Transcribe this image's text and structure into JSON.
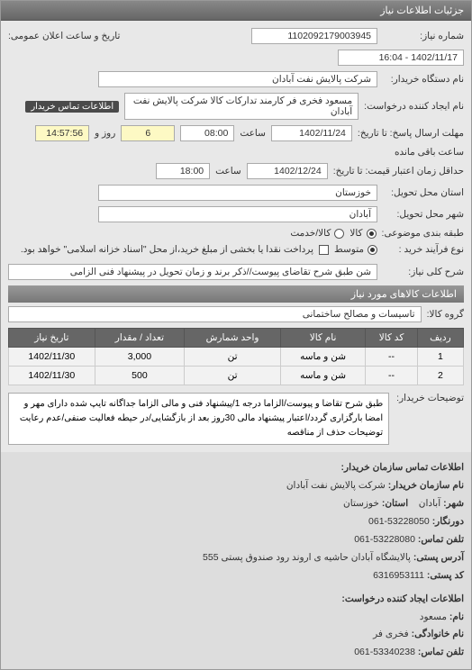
{
  "panel": {
    "title": "جزئیات اطلاعات نیاز"
  },
  "header": {
    "req_no_label": "شماره نیاز:",
    "req_no": "1102092179003945",
    "pub_label": "تاریخ و ساعت اعلان عمومی:",
    "pub_value": "1402/11/17 - 16:04",
    "buyer_label": "نام دستگاه خریدار:",
    "buyer_value": "شرکت پالایش نفت آبادان",
    "requester_label": "نام ایجاد کننده درخواست:",
    "requester_value": "مسعود فخری فر کارمند تدارکات کالا شرکت پالایش نفت آبادان",
    "buyer_contact_link": "اطلاعات تماس خریدار",
    "deadline_label": "مهلت ارسال پاسخ: تا تاریخ:",
    "deadline_date": "1402/11/24",
    "time_label": "ساعت",
    "deadline_time": "08:00",
    "remain_days": "6",
    "remain_day_label": "روز و",
    "remain_time": "14:57:56",
    "remain_suffix": "ساعت باقی مانده",
    "validity_label": "حداقل زمان اعتبار قیمت: تا تاریخ:",
    "validity_date": "1402/12/24",
    "validity_time": "18:00",
    "province_label": "استان محل تحویل:",
    "province_value": "خوزستان",
    "city_label": "شهر محل تحویل:",
    "city_value": "آبادان",
    "budget_label": "طبقه بندی موضوعی:",
    "budget_opts": {
      "kala": "کالا",
      "khadamat": "کالا/خدمت"
    },
    "buy_type_label": "نوع فرآیند خرید :",
    "buy_type_opts": {
      "mid": "متوسط",
      "note": "پرداخت نقدا یا بخشی از مبلغ خرید،از محل \"اسناد خزانه اسلامی\" خواهد بود."
    },
    "summary_label": "شرح کلی نیاز:",
    "summary_value": "شن طبق شرح تقاضای پیوست//ذکر برند و زمان تحویل در پیشنهاد فنی الزامی"
  },
  "items_section": {
    "title": "اطلاعات کالاهای مورد نیاز",
    "group_label": "گروه کالا:",
    "group_value": "تاسیسات و مصالح ساختمانی",
    "columns": [
      "ردیف",
      "کد کالا",
      "نام کالا",
      "واحد شمارش",
      "تعداد / مقدار",
      "تاریخ نیاز"
    ],
    "rows": [
      [
        "1",
        "--",
        "شن و ماسه",
        "تن",
        "3,000",
        "1402/11/30"
      ],
      [
        "2",
        "--",
        "شن و ماسه",
        "تن",
        "500",
        "1402/11/30"
      ]
    ],
    "desc_label": "توضیحات خریدار:",
    "desc_text": "طبق شرح تقاضا و پیوست/الزاما درجه 1/پیشنهاد فنی و مالی الزاما جداگانه تایپ شده دارای مهر و امضا بارگزاری گردد/اعتبار پیشنهاد مالی 30روز بعد از بازگشایی/در حیطه فعالیت صنفی/عدم رعایت توضیحات حذف از مناقصه"
  },
  "contact": {
    "title": "اطلاعات تماس سازمان خریدار:",
    "org_label": "نام سازمان خریدار:",
    "org_value": "شرکت پالایش نفت آبادان",
    "city_label": "شهر:",
    "city_value": "آبادان",
    "province_label": "استان:",
    "province_value": "خوزستان",
    "prefix_label": "دورنگار:",
    "prefix_value": "53228050-061",
    "phone_label": "تلفن تماس:",
    "phone_value": "53228080-061",
    "postal_label": "کد پستی:",
    "postal_value": "",
    "postbox_label": "آدرس پستی:",
    "postbox_value": "پالایشگاه آبادان حاشیه ی اروند رود صندوق پستی 555",
    "creator_title": "اطلاعات ایجاد کننده درخواست:",
    "name_label": "نام:",
    "name_value": "مسعود",
    "family_label": "نام خانوادگی:",
    "family_value": "فخری فر",
    "cphone_label": "تلفن تماس:",
    "cphone_value": "53340238-061",
    "cpostal_label": "کد پستی:",
    "cpostal_value": "6316953111"
  },
  "colors": {
    "header_bg": "#777",
    "field_bg": "#fff",
    "yellow": "#fdf9c4"
  }
}
